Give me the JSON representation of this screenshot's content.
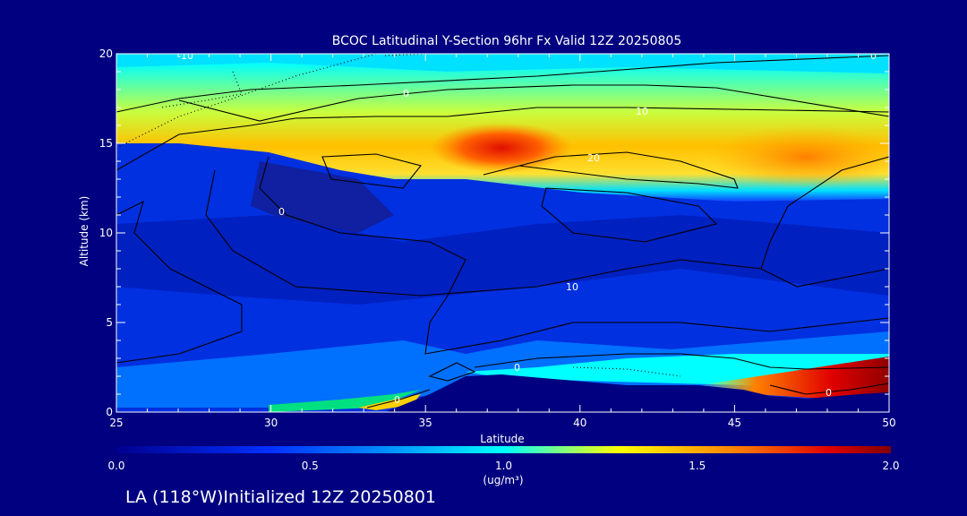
{
  "chart_data": {
    "type": "heatmap",
    "title": "BCOC Latitudinal Y-Section 96hr  Fx Valid 12Z 20250805",
    "xlabel": "Latitude",
    "ylabel": "Altitude (km)",
    "xlim": [
      25,
      50
    ],
    "ylim": [
      0,
      20
    ],
    "x_ticks": [
      "25",
      "30",
      "35",
      "40",
      "45",
      "50"
    ],
    "y_ticks": [
      "0",
      "5",
      "10",
      "15",
      "20"
    ],
    "colorbar": {
      "range": [
        0.0,
        2.0
      ],
      "ticks": [
        "0.0",
        "0.5",
        "1.0",
        "1.5",
        "2.0"
      ],
      "units_label": "(ug/m³)"
    },
    "field": {
      "description_units": "ug/m3",
      "features": [
        {
          "label": "upper plume",
          "lat_range": [
            25,
            50
          ],
          "alt_range": [
            13,
            18
          ],
          "peak_value": 1.9,
          "peak_lat": 37.5,
          "peak_alt": 14.7
        },
        {
          "label": "east upper max",
          "lat_range": [
            45,
            50
          ],
          "alt_range": [
            13,
            16
          ],
          "peak_value": 1.6
        },
        {
          "label": "surface layer east",
          "lat_range": [
            45,
            50
          ],
          "alt_range": [
            0.5,
            2.5
          ],
          "peak_value": 2.0
        },
        {
          "label": "surface layer west",
          "lat_range": [
            31,
            34
          ],
          "alt_range": [
            0,
            0.5
          ],
          "peak_value": 1.2
        }
      ]
    },
    "contour_labels": [
      "-10",
      "0",
      "0",
      "10",
      "20",
      "0",
      "10",
      "0",
      "0",
      "0"
    ],
    "footer": "LA (118°W)Initialized 12Z 20250801"
  }
}
